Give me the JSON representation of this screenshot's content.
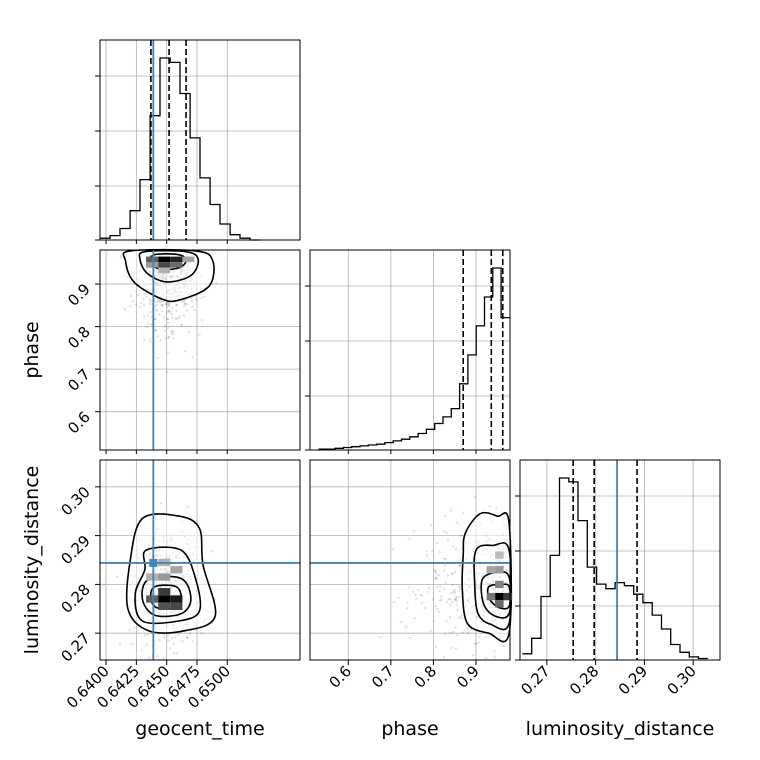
{
  "chart_data": {
    "type": "corner",
    "parameters": [
      "geocent_time",
      "phase",
      "luminosity_distance"
    ],
    "axis_labels": {
      "geocent_time": "geocent_time",
      "phase": "phase",
      "luminosity_distance": "luminosity_distance"
    },
    "ranges": {
      "geocent_time": [
        0.6395,
        0.656
      ],
      "phase": [
        0.51,
        0.98
      ],
      "luminosity_distance": [
        0.2645,
        0.3055
      ]
    },
    "ticks": {
      "geocent_time": [
        "0.6400",
        "0.6425",
        "0.6450",
        "0.6475",
        "0.6500"
      ],
      "phase": [
        "0.6",
        "0.7",
        "0.8",
        "0.9"
      ],
      "luminosity_distance": [
        "0.27",
        "0.28",
        "0.29",
        "0.30"
      ]
    },
    "truth": {
      "geocent_time": 0.6439,
      "luminosity_distance": 0.2844
    },
    "truth_color": "#4682b4",
    "quantiles": {
      "geocent_time": [
        0.6437,
        0.6452,
        0.6466
      ],
      "phase": [
        0.87,
        0.936,
        0.963
      ],
      "luminosity_distance": [
        0.2754,
        0.2797,
        0.2885
      ]
    },
    "histograms": {
      "geocent_time": {
        "edges": [
          0.6395,
          0.64033,
          0.64115,
          0.64198,
          0.6428,
          0.64363,
          0.64445,
          0.64528,
          0.6461,
          0.64693,
          0.64775,
          0.64858,
          0.6494,
          0.65023,
          0.65105,
          0.65188,
          0.6527
        ],
        "values": [
          2,
          5,
          13,
          33,
          68,
          140,
          205,
          200,
          165,
          115,
          70,
          40,
          18,
          6,
          2,
          0
        ]
      },
      "phase": {
        "edges": [
          0.53,
          0.5495,
          0.569,
          0.5885,
          0.608,
          0.6275,
          0.647,
          0.6665,
          0.686,
          0.7055,
          0.725,
          0.7445,
          0.764,
          0.7835,
          0.803,
          0.8225,
          0.842,
          0.8615,
          0.881,
          0.9005,
          0.92,
          0.9395,
          0.959,
          0.9785
        ],
        "values": [
          1,
          1,
          2,
          3,
          4,
          5,
          6,
          7,
          9,
          11,
          13,
          16,
          20,
          25,
          32,
          40,
          50,
          80,
          115,
          150,
          185,
          220,
          160
        ]
      },
      "luminosity_distance": {
        "edges": [
          0.265,
          0.2669,
          0.2688,
          0.2707,
          0.2726,
          0.2745,
          0.2764,
          0.2783,
          0.2802,
          0.2821,
          0.284,
          0.2859,
          0.2878,
          0.2897,
          0.2916,
          0.2935,
          0.2954,
          0.2973,
          0.2992,
          0.3011,
          0.303
        ],
        "values": [
          8,
          28,
          82,
          135,
          235,
          230,
          180,
          120,
          98,
          92,
          100,
          96,
          85,
          74,
          58,
          40,
          20,
          10,
          4,
          2
        ]
      }
    },
    "contours_2d": {
      "phase_vs_geocent_time": {
        "peak": [
          0.6448,
          0.955
        ],
        "levels": [
          [
            [
              0.642,
              0.978
            ],
            [
              0.6474,
              0.978
            ],
            [
              0.6488,
              0.955
            ],
            [
              0.6485,
              0.895
            ],
            [
              0.646,
              0.862
            ],
            [
              0.6445,
              0.866
            ],
            [
              0.6423,
              0.905
            ],
            [
              0.6416,
              0.955
            ]
          ],
          [
            [
              0.6432,
              0.976
            ],
            [
              0.6466,
              0.976
            ],
            [
              0.6476,
              0.958
            ],
            [
              0.647,
              0.92
            ],
            [
              0.645,
              0.905
            ],
            [
              0.6434,
              0.925
            ],
            [
              0.6428,
              0.958
            ]
          ],
          [
            [
              0.644,
              0.969
            ],
            [
              0.646,
              0.969
            ],
            [
              0.6466,
              0.955
            ],
            [
              0.646,
              0.938
            ],
            [
              0.6445,
              0.935
            ],
            [
              0.6436,
              0.95
            ]
          ]
        ],
        "density_blocks": [
          [
            0.6448,
            0.958,
            1.0
          ],
          [
            0.6458,
            0.958,
            0.85
          ],
          [
            0.6438,
            0.958,
            0.6
          ],
          [
            0.6448,
            0.945,
            0.7
          ],
          [
            0.6458,
            0.945,
            0.55
          ],
          [
            0.6438,
            0.945,
            0.35
          ],
          [
            0.6468,
            0.958,
            0.3
          ],
          [
            0.6448,
            0.932,
            0.25
          ]
        ]
      },
      "luminosity_distance_vs_geocent_time": {
        "peak": [
          0.645,
          0.277
        ],
        "levels": [
          [
            [
              0.643,
              0.2935
            ],
            [
              0.646,
              0.294
            ],
            [
              0.6477,
              0.2915
            ],
            [
              0.648,
              0.284
            ],
            [
              0.649,
              0.2735
            ],
            [
              0.6465,
              0.2705
            ],
            [
              0.6435,
              0.2705
            ],
            [
              0.6418,
              0.275
            ],
            [
              0.642,
              0.285
            ]
          ],
          [
            [
              0.6433,
              0.287
            ],
            [
              0.6462,
              0.287
            ],
            [
              0.6474,
              0.281
            ],
            [
              0.6477,
              0.2745
            ],
            [
              0.646,
              0.2725
            ],
            [
              0.643,
              0.2725
            ],
            [
              0.6424,
              0.278
            ],
            [
              0.6432,
              0.283
            ]
          ],
          [
            [
              0.6435,
              0.281
            ],
            [
              0.6462,
              0.2812
            ],
            [
              0.647,
              0.277
            ],
            [
              0.6462,
              0.274
            ],
            [
              0.644,
              0.2737
            ],
            [
              0.643,
              0.277
            ]
          ],
          [
            [
              0.644,
              0.2795
            ],
            [
              0.6458,
              0.2795
            ],
            [
              0.6462,
              0.2768
            ],
            [
              0.6455,
              0.2752
            ],
            [
              0.6442,
              0.2752
            ],
            [
              0.6437,
              0.277
            ]
          ]
        ],
        "density_blocks": [
          [
            0.6448,
            0.277,
            1.0
          ],
          [
            0.6458,
            0.277,
            0.9
          ],
          [
            0.6448,
            0.2785,
            0.75
          ],
          [
            0.6438,
            0.277,
            0.6
          ],
          [
            0.6458,
            0.2755,
            0.7
          ],
          [
            0.6448,
            0.2755,
            0.65
          ],
          [
            0.6448,
            0.2815,
            0.35
          ],
          [
            0.6458,
            0.283,
            0.3
          ],
          [
            0.6448,
            0.2845,
            0.25
          ],
          [
            0.6438,
            0.2815,
            0.25
          ]
        ]
      },
      "luminosity_distance_vs_phase": {
        "peak": [
          0.955,
          0.2775
        ],
        "levels": [
          [
            [
              0.875,
              0.2905
            ],
            [
              0.91,
              0.2945
            ],
            [
              0.95,
              0.294
            ],
            [
              0.978,
              0.2925
            ],
            [
              0.978,
              0.27
            ],
            [
              0.93,
              0.27
            ],
            [
              0.88,
              0.272
            ],
            [
              0.868,
              0.279
            ],
            [
              0.87,
              0.286
            ]
          ],
          [
            [
              0.9,
              0.287
            ],
            [
              0.94,
              0.288
            ],
            [
              0.978,
              0.287
            ],
            [
              0.978,
              0.272
            ],
            [
              0.935,
              0.2718
            ],
            [
              0.905,
              0.274
            ],
            [
              0.897,
              0.28
            ]
          ],
          [
            [
              0.915,
              0.281
            ],
            [
              0.95,
              0.2825
            ],
            [
              0.978,
              0.2815
            ],
            [
              0.978,
              0.274
            ],
            [
              0.945,
              0.2735
            ],
            [
              0.918,
              0.276
            ]
          ],
          [
            [
              0.93,
              0.2795
            ],
            [
              0.96,
              0.28
            ],
            [
              0.978,
              0.2795
            ],
            [
              0.978,
              0.2755
            ],
            [
              0.955,
              0.2752
            ],
            [
              0.932,
              0.277
            ]
          ]
        ],
        "density_blocks": [
          [
            0.955,
            0.2775,
            1.0
          ],
          [
            0.975,
            0.2775,
            0.75
          ],
          [
            0.935,
            0.2775,
            0.5
          ],
          [
            0.955,
            0.276,
            0.55
          ],
          [
            0.955,
            0.28,
            0.45
          ],
          [
            0.935,
            0.283,
            0.3
          ],
          [
            0.955,
            0.283,
            0.35
          ],
          [
            0.955,
            0.286,
            0.2
          ]
        ]
      }
    },
    "grid": true,
    "samples_shown_as": "grey scatter points"
  }
}
